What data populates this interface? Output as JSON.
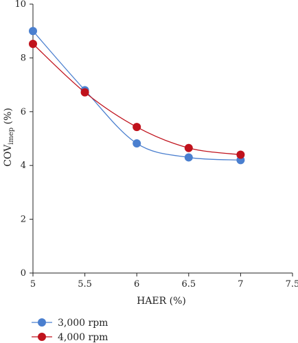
{
  "chart_data": {
    "type": "line",
    "xlabel": "HAER (%)",
    "ylabel": "COV",
    "ylabel_sub": "imep",
    "ylabel_suffix": " (%)",
    "xlim": [
      5,
      7.5
    ],
    "ylim": [
      0,
      10
    ],
    "x_ticks": [
      5,
      5.5,
      6,
      6.5,
      7,
      7.5
    ],
    "x_tick_labels": [
      "5",
      "5.5",
      "6",
      "6.5",
      "7",
      "7.5"
    ],
    "y_ticks": [
      0,
      2,
      4,
      6,
      8,
      10
    ],
    "y_tick_labels": [
      "0",
      "2",
      "4",
      "6",
      "8",
      "10"
    ],
    "grid": false,
    "legend_position": "bottom-left",
    "x": [
      5,
      5.5,
      6,
      6.5,
      7
    ],
    "series": [
      {
        "name": "3,000 rpm",
        "values": [
          9.0,
          6.8,
          4.82,
          4.3,
          4.2
        ],
        "color": "#4a7fcf"
      },
      {
        "name": "4,000 rpm",
        "values": [
          8.52,
          6.72,
          5.43,
          4.65,
          4.4
        ],
        "color": "#c0121c"
      }
    ]
  }
}
